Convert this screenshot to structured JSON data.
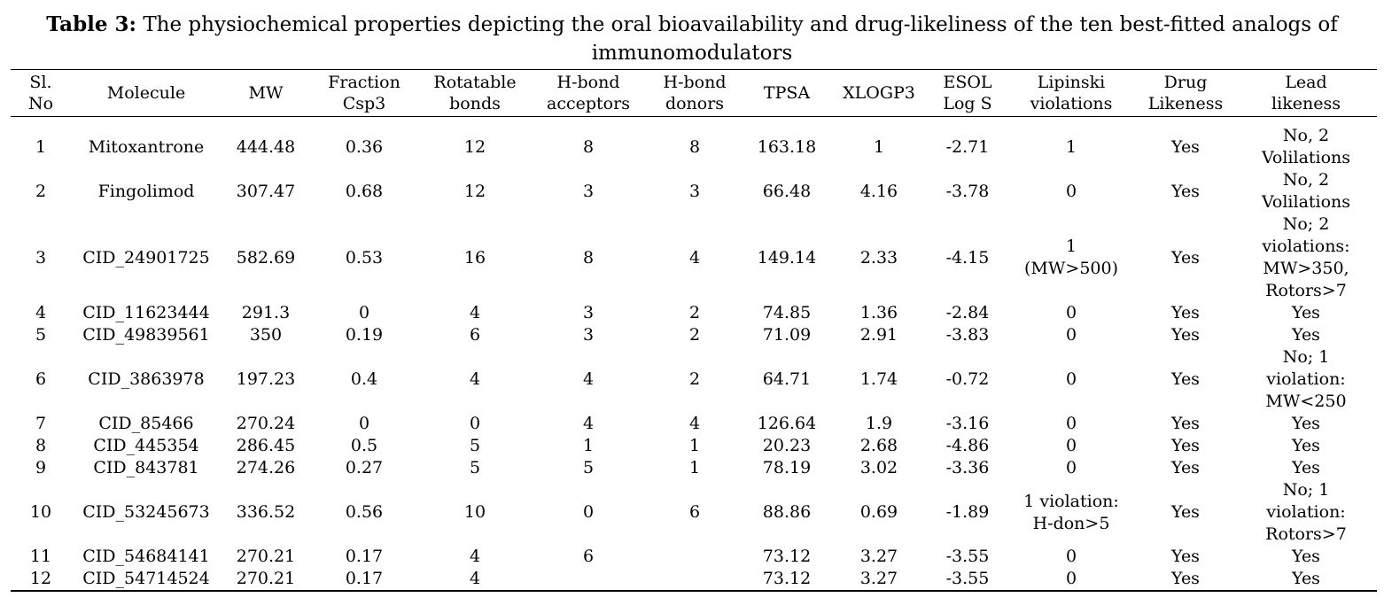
{
  "caption": {
    "label": "Table 3:",
    "text": " The physiochemical properties depicting the oral bioavailability and drug-likeliness of the ten best-fitted analogs of immunomodulators"
  },
  "table": {
    "headers": [
      [
        "Sl.",
        "No"
      ],
      [
        "Molecule"
      ],
      [
        "MW"
      ],
      [
        "Fraction",
        "Csp3"
      ],
      [
        "Rotatable",
        "bonds"
      ],
      [
        "H-bond",
        "acceptors"
      ],
      [
        "H-bond",
        "donors"
      ],
      [
        "TPSA"
      ],
      [
        "XLOGP3"
      ],
      [
        "ESOL",
        "Log S"
      ],
      [
        "Lipinski",
        "violations"
      ],
      [
        "Drug",
        "Likeness"
      ],
      [
        "Lead",
        "likeness"
      ]
    ],
    "rows": [
      {
        "cells": [
          "1",
          "Mitoxantrone",
          "444.48",
          "0.36",
          "12",
          "8",
          "8",
          "163.18",
          "1",
          "-2.71",
          [
            "1"
          ],
          "Yes",
          [
            "No, 2",
            "Volilations"
          ]
        ]
      },
      {
        "cells": [
          "2",
          "Fingolimod",
          "307.47",
          "0.68",
          "12",
          "3",
          "3",
          "66.48",
          "4.16",
          "-3.78",
          [
            "0"
          ],
          "Yes",
          [
            "No, 2",
            "Volilations"
          ]
        ]
      },
      {
        "cells": [
          "3",
          "CID_24901725",
          "582.69",
          "0.53",
          "16",
          "8",
          "4",
          "149.14",
          "2.33",
          "-4.15",
          [
            "1",
            "(MW>500)"
          ],
          "Yes",
          [
            "No; 2",
            "violations:",
            "MW>350,",
            "Rotors>7"
          ]
        ]
      },
      {
        "cells": [
          "4",
          "CID_11623444",
          "291.3",
          "0",
          "4",
          "3",
          "2",
          "74.85",
          "1.36",
          "-2.84",
          [
            "0"
          ],
          "Yes",
          [
            "Yes"
          ]
        ]
      },
      {
        "cells": [
          "5",
          "CID_49839561",
          "350",
          "0.19",
          "6",
          "3",
          "2",
          "71.09",
          "2.91",
          "-3.83",
          [
            "0"
          ],
          "Yes",
          [
            "Yes"
          ]
        ]
      },
      {
        "cells": [
          "6",
          "CID_3863978",
          "197.23",
          "0.4",
          "4",
          "4",
          "2",
          "64.71",
          "1.74",
          "-0.72",
          [
            "0"
          ],
          "Yes",
          [
            "No; 1",
            "violation:",
            "MW<250"
          ]
        ]
      },
      {
        "cells": [
          "7",
          "CID_85466",
          "270.24",
          "0",
          "0",
          "4",
          "4",
          "126.64",
          "1.9",
          "-3.16",
          [
            "0"
          ],
          "Yes",
          [
            "Yes"
          ]
        ]
      },
      {
        "cells": [
          "8",
          "CID_445354",
          "286.45",
          "0.5",
          "5",
          "1",
          "1",
          "20.23",
          "2.68",
          "-4.86",
          [
            "0"
          ],
          "Yes",
          [
            "Yes"
          ]
        ]
      },
      {
        "cells": [
          "9",
          "CID_843781",
          "274.26",
          "0.27",
          "5",
          "5",
          "1",
          "78.19",
          "3.02",
          "-3.36",
          [
            "0"
          ],
          "Yes",
          [
            "Yes"
          ]
        ]
      },
      {
        "cells": [
          "10",
          "CID_53245673",
          "336.52",
          "0.56",
          "10",
          "0",
          "6",
          "88.86",
          "0.69",
          "-1.89",
          [
            "1 violation:",
            "H-don>5"
          ],
          "Yes",
          [
            "No; 1",
            "violation:",
            "Rotors>7"
          ]
        ]
      },
      {
        "cells": [
          "11",
          "CID_54684141",
          "270.21",
          "0.17",
          "4",
          "6",
          "",
          "73.12",
          "3.27",
          "-3.55",
          [
            "0"
          ],
          "Yes",
          [
            "Yes"
          ]
        ]
      },
      {
        "cells": [
          "12",
          "CID_54714524",
          "270.21",
          "0.17",
          "4",
          "",
          "",
          "73.12",
          "3.27",
          "-3.55",
          [
            "0"
          ],
          "Yes",
          [
            "Yes"
          ]
        ]
      }
    ]
  }
}
